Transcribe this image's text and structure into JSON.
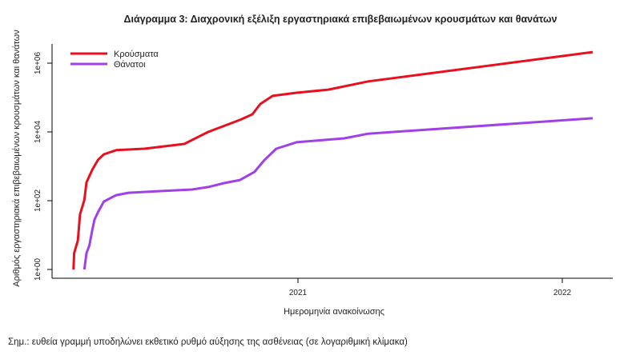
{
  "chart_data": {
    "type": "line",
    "title": "Διάγραμμα 3: Διαχρονική εξέλιξη εργαστηριακά επιβεβαιωμένων κρουσμάτων και θανάτων",
    "xlabel": "Ημερομηνία ανακοίνωσης",
    "ylabel": "Αριθμός εργαστηριακά επιβεβαιωμένων κρουσμάτων και θανάτων",
    "yscale": "log10",
    "ylim": [
      1,
      2000000
    ],
    "y_ticks": [
      {
        "value": 1,
        "label": "1e+00"
      },
      {
        "value": 100,
        "label": "1e+02"
      },
      {
        "value": 10000,
        "label": "1e+04"
      },
      {
        "value": 1000000,
        "label": "1e+06"
      }
    ],
    "x_ticks": [
      {
        "date": "2021-01-01",
        "label": "2021"
      },
      {
        "date": "2022-01-01",
        "label": "2022"
      }
    ],
    "legend_position": "top-left",
    "note": "Σημ.: ευθεία γραμμή υποδηλώνει εκθετικό ρυθμό αύξησης της ασθένειας (σε λογαριθμική κλίμακα)",
    "series": [
      {
        "name": "Κρούσματα",
        "color": "#e8101e",
        "points": [
          [
            "2020-02-26",
            1
          ],
          [
            "2020-02-27",
            3
          ],
          [
            "2020-03-03",
            7
          ],
          [
            "2020-03-06",
            40
          ],
          [
            "2020-03-12",
            105
          ],
          [
            "2020-03-15",
            340
          ],
          [
            "2020-03-23",
            800
          ],
          [
            "2020-03-31",
            1550
          ],
          [
            "2020-04-08",
            2230
          ],
          [
            "2020-04-25",
            2950
          ],
          [
            "2020-06-03",
            3240
          ],
          [
            "2020-07-28",
            4470
          ],
          [
            "2020-08-30",
            10000
          ],
          [
            "2020-10-13",
            22400
          ],
          [
            "2020-10-30",
            32400
          ],
          [
            "2020-11-10",
            65000
          ],
          [
            "2020-11-27",
            112000
          ],
          [
            "2020-12-30",
            138000
          ],
          [
            "2021-02-12",
            170000
          ],
          [
            "2021-04-08",
            295000
          ],
          [
            "2022-02-12",
            2100000
          ]
        ]
      },
      {
        "name": "Θάνατοι",
        "color": "#a040e8",
        "points": [
          [
            "2020-03-12",
            1
          ],
          [
            "2020-03-15",
            3
          ],
          [
            "2020-03-19",
            5
          ],
          [
            "2020-03-23",
            14
          ],
          [
            "2020-03-26",
            28
          ],
          [
            "2020-03-31",
            47
          ],
          [
            "2020-04-08",
            95
          ],
          [
            "2020-04-25",
            145
          ],
          [
            "2020-05-12",
            170
          ],
          [
            "2020-06-25",
            190
          ],
          [
            "2020-08-08",
            212
          ],
          [
            "2020-08-30",
            250
          ],
          [
            "2020-09-21",
            325
          ],
          [
            "2020-10-13",
            400
          ],
          [
            "2020-11-02",
            690
          ],
          [
            "2020-11-16",
            1540
          ],
          [
            "2020-12-02",
            3250
          ],
          [
            "2020-12-30",
            5000
          ],
          [
            "2021-03-06",
            6500
          ],
          [
            "2021-04-08",
            8900
          ],
          [
            "2022-02-12",
            25000
          ]
        ]
      }
    ]
  }
}
